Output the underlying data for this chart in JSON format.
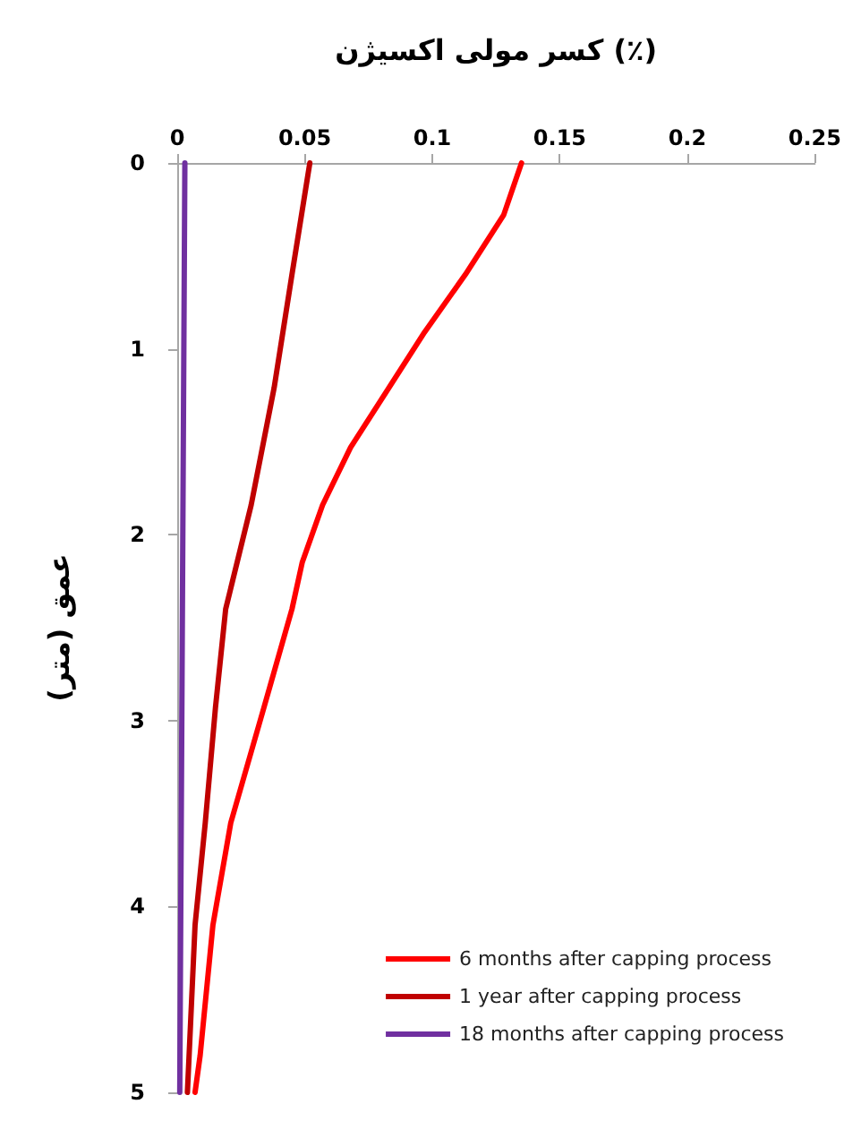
{
  "chart_data": {
    "type": "line",
    "xlabel": "کسر مولی اکسیژن (٪)",
    "ylabel": "عمق (متر)",
    "series": [
      {
        "name": "6 months after capping process",
        "color": "#ff0000",
        "x": [
          0.135,
          0.128,
          0.113,
          0.097,
          0.083,
          0.068,
          0.057,
          0.049,
          0.045,
          0.034,
          0.021,
          0.014,
          0.009,
          0.007
        ],
        "values": [
          0,
          0.28,
          0.6,
          0.91,
          1.21,
          1.53,
          1.84,
          2.15,
          2.4,
          2.93,
          3.55,
          4.1,
          4.8,
          5
        ]
      },
      {
        "name": "1 year after capping process",
        "color": "#c00000",
        "x": [
          0.052,
          0.045,
          0.038,
          0.029,
          0.019,
          0.015,
          0.011,
          0.007,
          0.004
        ],
        "values": [
          0,
          0.6,
          1.21,
          1.84,
          2.4,
          2.93,
          3.55,
          4.1,
          5
        ]
      },
      {
        "name": "18 months after capping process",
        "color": "#7030a0",
        "x": [
          0.003,
          0.002,
          0.001
        ],
        "values": [
          0,
          2.5,
          5
        ]
      }
    ],
    "xlim": [
      0,
      0.25
    ],
    "xticks": [
      0,
      0.05,
      0.1,
      0.15,
      0.2,
      0.25
    ],
    "ylim": [
      5,
      0
    ],
    "yticks": [
      0,
      1,
      2,
      3,
      4,
      5
    ],
    "grid": false,
    "legend": "bottom right",
    "marker": "none",
    "line_style": "solid"
  }
}
